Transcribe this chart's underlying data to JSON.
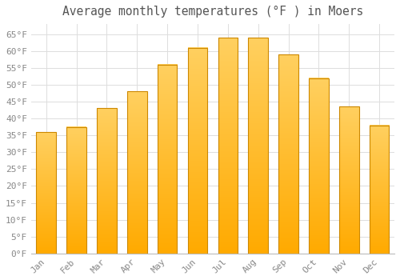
{
  "title": "Average monthly temperatures (°F ) in Moers",
  "months": [
    "Jan",
    "Feb",
    "Mar",
    "Apr",
    "May",
    "Jun",
    "Jul",
    "Aug",
    "Sep",
    "Oct",
    "Nov",
    "Dec"
  ],
  "values": [
    36,
    37.5,
    43,
    48,
    56,
    61,
    64,
    64,
    59,
    52,
    43.5,
    38
  ],
  "bar_color_top": "#FFC82A",
  "bar_color_bottom": "#FFAA00",
  "bar_edge_color": "#CC8800",
  "background_color": "#FFFFFF",
  "plot_bg_color": "#FFFFFF",
  "grid_color": "#DDDDDD",
  "ylim": [
    0,
    68
  ],
  "yticks": [
    0,
    5,
    10,
    15,
    20,
    25,
    30,
    35,
    40,
    45,
    50,
    55,
    60,
    65
  ],
  "title_fontsize": 10.5,
  "tick_fontsize": 8,
  "tick_color": "#888888",
  "title_color": "#555555",
  "font_family": "monospace"
}
